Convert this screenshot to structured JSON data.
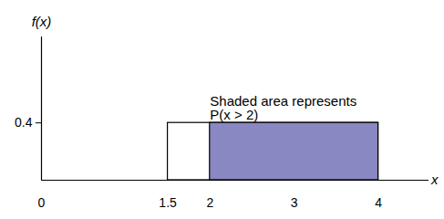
{
  "chart_data": {
    "type": "uniform",
    "x_label": "x",
    "y_label": "f(x)",
    "x": [
      1.5,
      4
    ],
    "values": [
      0.4,
      0.4
    ],
    "shaded_x": [
      2,
      4
    ],
    "color": "#8a88c2",
    "annotation": [
      "Shaded area represents",
      "P(x > 2)"
    ],
    "xlim": [
      0,
      4.6
    ],
    "ylim": [
      0,
      1
    ],
    "xticks": [
      0,
      1.5,
      2,
      3,
      4
    ],
    "yticks": [
      0.4
    ],
    "grid": false
  }
}
